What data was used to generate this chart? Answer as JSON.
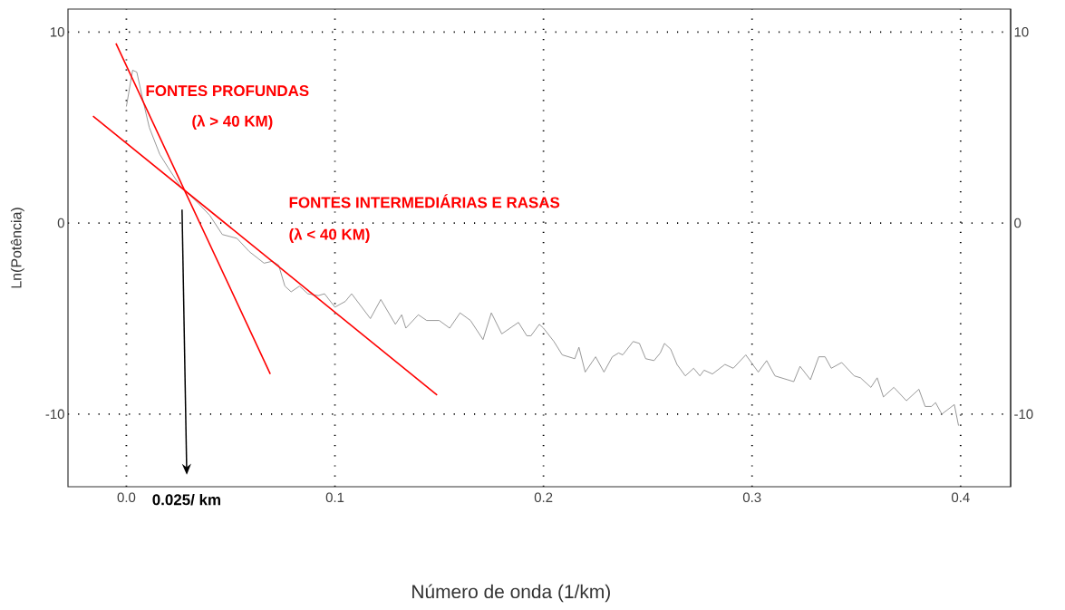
{
  "chart_data": {
    "type": "line",
    "xlabel": "Número de onda (1/km)",
    "ylabel": "Ln(Potência)",
    "xlim": [
      -0.028,
      0.424
    ],
    "ylim": [
      -13.8,
      11.2
    ],
    "y2lim": [
      -13.8,
      11.2
    ],
    "xticks": [
      {
        "value": 0,
        "label": "0.0"
      },
      {
        "value": 0.1,
        "label": "0.1"
      },
      {
        "value": 0.2,
        "label": "0.2"
      },
      {
        "value": 0.3,
        "label": "0.3"
      },
      {
        "value": 0.4,
        "label": "0.4"
      }
    ],
    "yticks": [
      -10,
      0,
      10
    ],
    "y2ticks": [
      -10,
      0,
      10
    ],
    "grid": true,
    "marker": "none",
    "line_style": "solid",
    "series": [
      {
        "color": "#8c8c8c",
        "x": [
          0.0,
          0.003,
          0.005,
          0.008,
          0.011,
          0.016,
          0.02,
          0.026,
          0.033,
          0.04,
          0.046,
          0.053,
          0.059,
          0.066,
          0.07,
          0.073,
          0.076,
          0.079,
          0.083,
          0.087,
          0.092,
          0.095,
          0.1,
          0.105,
          0.108,
          0.117,
          0.122,
          0.129,
          0.132,
          0.134,
          0.14,
          0.144,
          0.15,
          0.155,
          0.16,
          0.165,
          0.171,
          0.175,
          0.18,
          0.188,
          0.192,
          0.194,
          0.198,
          0.2,
          0.205,
          0.209,
          0.215,
          0.217,
          0.22,
          0.225,
          0.229,
          0.233,
          0.236,
          0.238,
          0.243,
          0.246,
          0.249,
          0.253,
          0.256,
          0.258,
          0.261,
          0.264,
          0.268,
          0.272,
          0.275,
          0.277,
          0.281,
          0.287,
          0.291,
          0.297,
          0.303,
          0.307,
          0.311,
          0.32,
          0.323,
          0.328,
          0.332,
          0.335,
          0.338,
          0.343,
          0.349,
          0.352,
          0.357,
          0.36,
          0.363,
          0.368,
          0.374,
          0.38,
          0.383,
          0.386,
          0.388,
          0.391,
          0.397,
          0.399
        ],
        "values": [
          6.1,
          8.0,
          7.9,
          6.4,
          5.0,
          3.6,
          2.9,
          1.9,
          1.2,
          0.4,
          -0.6,
          -0.8,
          -1.5,
          -2.1,
          -2.0,
          -2.2,
          -3.3,
          -3.6,
          -3.3,
          -3.7,
          -3.8,
          -3.7,
          -4.4,
          -4.1,
          -3.7,
          -5.0,
          -4.0,
          -5.3,
          -4.8,
          -5.5,
          -4.8,
          -5.1,
          -5.1,
          -5.5,
          -4.7,
          -5.1,
          -6.1,
          -4.7,
          -5.8,
          -5.2,
          -5.9,
          -5.9,
          -5.3,
          -5.5,
          -6.2,
          -6.9,
          -7.1,
          -6.5,
          -7.8,
          -7.0,
          -7.8,
          -7.0,
          -6.8,
          -6.9,
          -6.2,
          -6.3,
          -7.1,
          -7.2,
          -6.8,
          -6.3,
          -6.6,
          -7.4,
          -8.0,
          -7.6,
          -8.0,
          -7.7,
          -7.9,
          -7.4,
          -7.6,
          -6.9,
          -7.8,
          -7.2,
          -8.0,
          -8.3,
          -7.5,
          -8.2,
          -7.0,
          -7.0,
          -7.6,
          -7.3,
          -8.0,
          -8.1,
          -8.6,
          -8.1,
          -9.1,
          -8.6,
          -9.3,
          -8.7,
          -9.6,
          -9.6,
          -9.4,
          -10.0,
          -9.5,
          -10.6
        ]
      },
      {
        "color": "#ff0000",
        "x": [
          -0.005,
          0.069
        ],
        "values": [
          9.4,
          -7.9
        ]
      },
      {
        "color": "#ff0000",
        "x": [
          -0.016,
          0.149
        ],
        "values": [
          5.6,
          -9.0
        ]
      }
    ],
    "annotations": [
      "FONTES PROFUNDAS",
      "(λ > 40 KM)",
      "FONTES INTERMEDIÁRIAS E RASAS",
      "(λ < 40 KM)",
      "0.025/ km"
    ]
  }
}
